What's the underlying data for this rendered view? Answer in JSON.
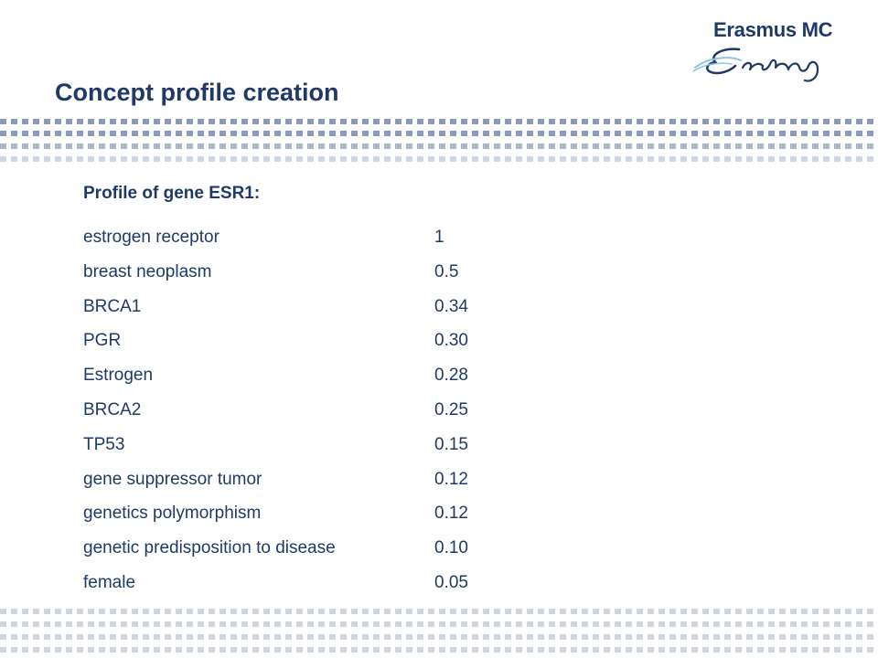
{
  "logo": {
    "name": "Erasmus MC"
  },
  "slide": {
    "title": "Concept profile creation"
  },
  "profile": {
    "heading": "Profile of gene ESR1:",
    "rows": [
      {
        "term": "estrogen receptor",
        "score": "1"
      },
      {
        "term": "breast neoplasm",
        "score": "0.5"
      },
      {
        "term": "BRCA1",
        "score": "0.34"
      },
      {
        "term": "PGR",
        "score": "0.30"
      },
      {
        "term": "Estrogen",
        "score": "0.28"
      },
      {
        "term": "BRCA2",
        "score": "0.25"
      },
      {
        "term": "TP53",
        "score": "0.15"
      },
      {
        "term": "gene suppressor tumor",
        "score": "0.12"
      },
      {
        "term": "genetics polymorphism",
        "score": "0.12"
      },
      {
        "term": "genetic predisposition to disease",
        "score": "0.10"
      },
      {
        "term": "female",
        "score": "0.05"
      }
    ]
  },
  "colors": {
    "title_text": "#1f3a68",
    "dots_dark": "#8a9ab8",
    "dots_light": "#cfd6e2",
    "logo_swoosh": "#8fc6d8"
  }
}
